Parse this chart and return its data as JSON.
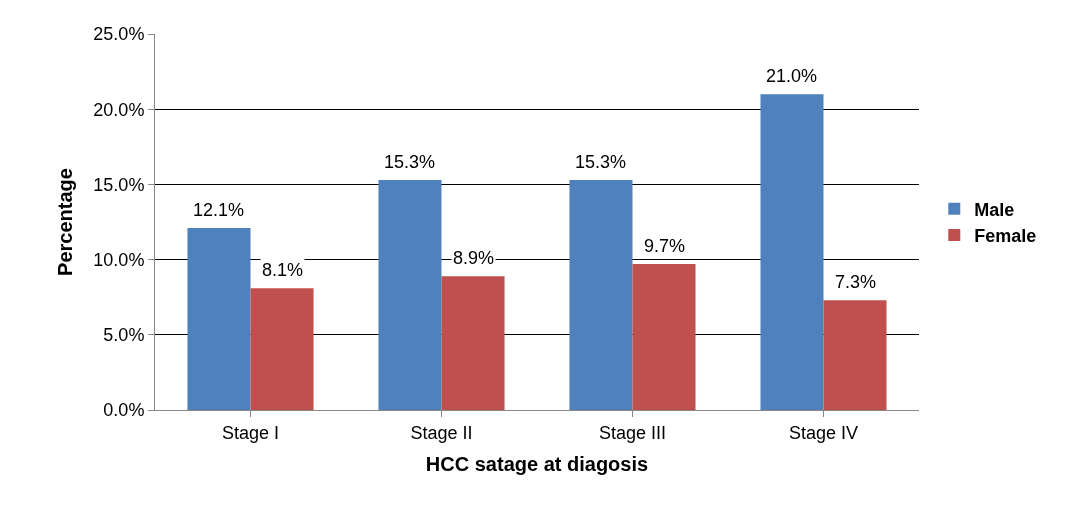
{
  "chart_data": {
    "type": "bar",
    "xlabel": "HCC satage at diagosis",
    "ylabel": "Percentage",
    "categories": [
      "Stage I",
      "Stage II",
      "Stage III",
      "Stage IV"
    ],
    "series": [
      {
        "name": "Male",
        "color": "#4f81bd",
        "values": [
          12.1,
          15.3,
          15.3,
          21.0
        ],
        "value_labels": [
          "12.1%",
          "15.3%",
          "15.3%",
          "21.0%"
        ]
      },
      {
        "name": "Female",
        "color": "#c0504d",
        "values": [
          8.1,
          8.9,
          9.7,
          7.3
        ],
        "value_labels": [
          "8.1%",
          "8.9%",
          "9.7%",
          "7.3%"
        ]
      }
    ],
    "ylim": [
      0,
      25
    ],
    "yticks": [
      {
        "value": 0,
        "label": "0.0%"
      },
      {
        "value": 5,
        "label": "5.0%"
      },
      {
        "value": 10,
        "label": "10.0%"
      },
      {
        "value": 15,
        "label": "15.0%"
      },
      {
        "value": 20,
        "label": "20.0%"
      },
      {
        "value": 25,
        "label": "25.0%"
      }
    ],
    "grid": "y",
    "legend": "right"
  }
}
